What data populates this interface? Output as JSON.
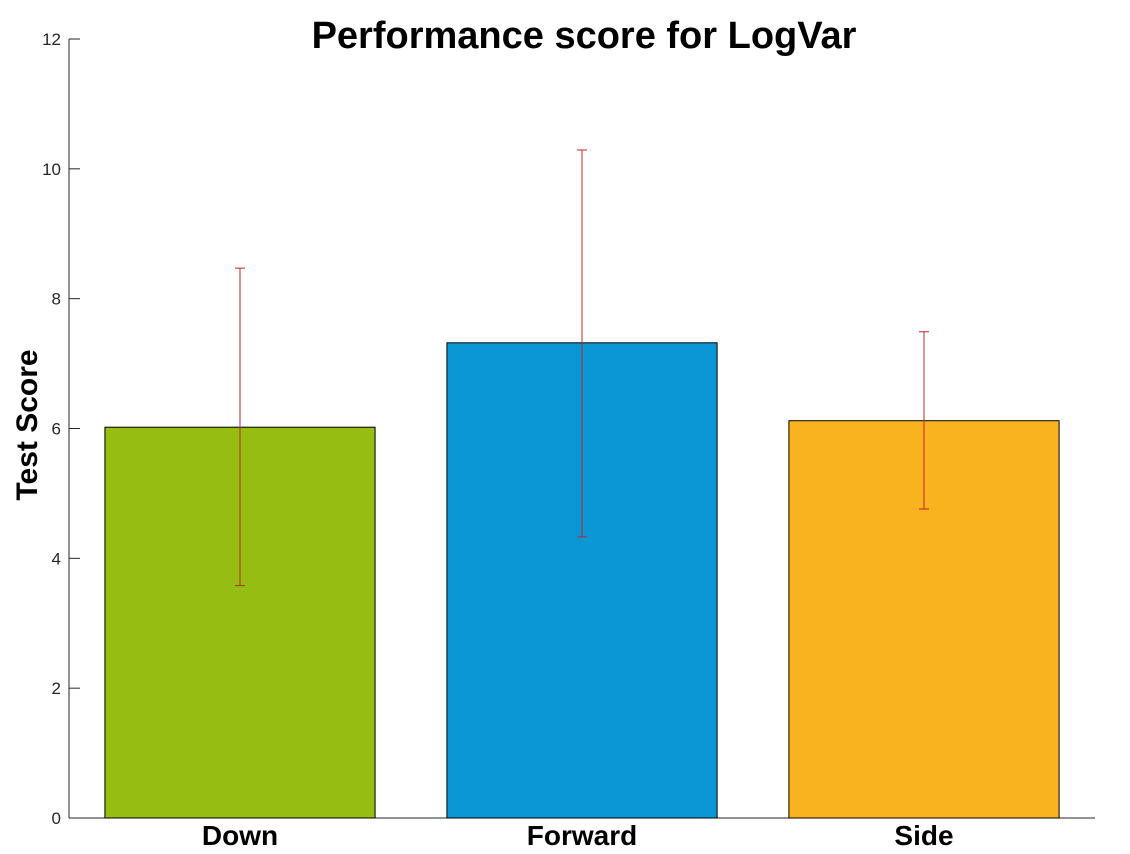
{
  "chart_data": {
    "type": "bar",
    "title": "Performance score for LogVar",
    "xlabel": "",
    "ylabel": "Test Score",
    "categories": [
      "Down",
      "Forward",
      "Side"
    ],
    "values": [
      6.02,
      7.32,
      6.12
    ],
    "error_bars": [
      {
        "low": 3.58,
        "high": 8.47
      },
      {
        "low": 4.33,
        "high": 10.29
      },
      {
        "low": 4.76,
        "high": 7.49
      }
    ],
    "bar_colors": [
      "#95BD12",
      "#0B97D6",
      "#F9B31E"
    ],
    "error_bar_color": "#C2252F",
    "ylim": [
      0,
      12
    ],
    "yticks": [
      "0",
      "2",
      "4",
      "6",
      "8",
      "10",
      "12"
    ],
    "grid": false,
    "legend": "none"
  }
}
